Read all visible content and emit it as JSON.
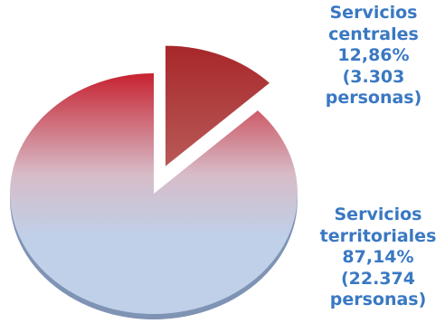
{
  "colors": {
    "small_top": "#a8272a",
    "small_bottom": "#b85a58",
    "large_top": "#c72230",
    "large_mid": "#d7bcc8",
    "large_bottom": "#bfd0e8",
    "edge_shadow": "#7f93b4",
    "label_text": "#3a78c3"
  },
  "chart_data": {
    "type": "pie",
    "slices": [
      {
        "label_lines": [
          "Servicios",
          "centrales",
          "12,86%",
          "(3.303",
          "personas)"
        ],
        "percent": 12.86,
        "count": 3303,
        "exploded": true
      },
      {
        "label_lines": [
          "Servicios",
          "territoriales",
          "87,14%",
          "(22.374",
          "personas)"
        ],
        "percent": 87.14,
        "count": 22374,
        "exploded": false
      }
    ]
  }
}
